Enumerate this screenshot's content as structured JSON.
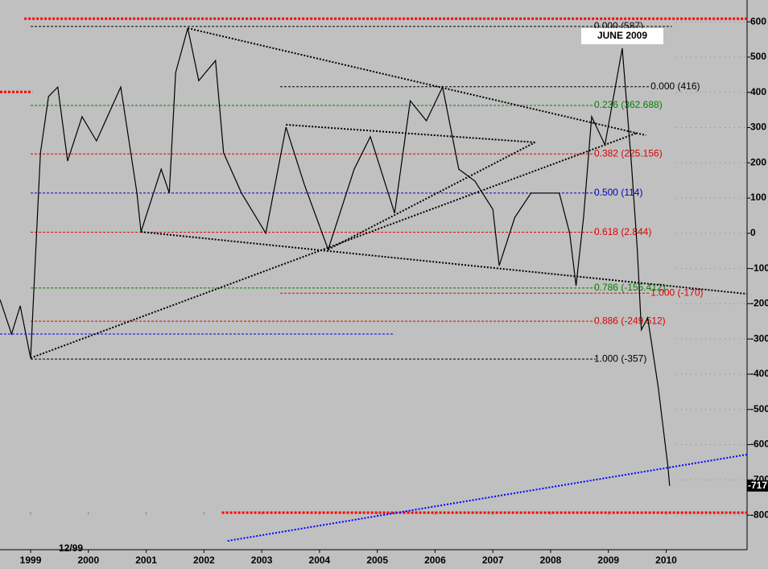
{
  "chart_data": {
    "type": "line",
    "xlim": [
      1998.47,
      2011.4
    ],
    "xticks": [
      1999,
      2000,
      2001,
      2002,
      2003,
      2004,
      2005,
      2006,
      2007,
      2008,
      2009,
      2010
    ],
    "ylim": [
      -898,
      662
    ],
    "yticks": [
      600,
      500,
      400,
      300,
      200,
      100,
      0,
      -100,
      -200,
      -300,
      -400,
      -500,
      -600,
      -700,
      -800
    ],
    "grid": true,
    "series": [
      {
        "color": "#000000",
        "x": [
          1998.47,
          1998.67,
          1998.82,
          1999.0,
          1999.17,
          1999.31,
          1999.47,
          1999.64,
          1999.89,
          2000.14,
          2000.56,
          2000.84,
          2000.91,
          2001.26,
          2001.4,
          2001.51,
          2001.72,
          2001.91,
          2002.2,
          2002.34,
          2002.65,
          2003.07,
          2003.42,
          2003.74,
          2004.15,
          2004.6,
          2004.88,
          2005.3,
          2005.57,
          2005.85,
          2006.13,
          2006.41,
          2006.69,
          2007.0,
          2007.11,
          2007.38,
          2007.66,
          2008.15,
          2008.33,
          2008.44,
          2008.57,
          2008.71,
          2008.94,
          2009.24,
          2009.4,
          2009.5,
          2009.57,
          2009.68,
          2009.86,
          2010.03,
          2010.06
        ],
        "values": [
          -188,
          -286,
          -206,
          -354,
          228,
          388,
          415,
          205,
          331,
          262,
          415,
          114,
          4,
          182,
          114,
          456,
          582,
          433,
          490,
          228,
          114,
          0,
          301,
          137,
          -46,
          182,
          274,
          57,
          376,
          319,
          415,
          182,
          148,
          68,
          -92,
          45,
          114,
          114,
          0,
          -149,
          45,
          331,
          251,
          525,
          194,
          -46,
          -274,
          -240,
          -434,
          -662,
          -717
        ]
      }
    ],
    "levels": [
      {
        "label": "0.000 (587)",
        "value": 587,
        "color": "#000000",
        "x": [
          1999.0,
          2010.1
        ]
      },
      {
        "label": "0.000 (416)",
        "value": 416,
        "color": "#000000",
        "x": [
          2003.32,
          2009.73
        ]
      },
      {
        "label": "0.236 (362.688)",
        "value": 362.688,
        "color": "#008000",
        "x": [
          1999.0,
          2008.78
        ]
      },
      {
        "label": "0.382 (225.156)",
        "value": 225.156,
        "color": "#e00000",
        "x": [
          1999.0,
          2008.78
        ]
      },
      {
        "label": "0.500 (114)",
        "value": 114,
        "color": "#0000c0",
        "x": [
          1999.0,
          2008.78
        ]
      },
      {
        "label": "0.618 (2.844)",
        "value": 2.844,
        "color": "#e00000",
        "x": [
          1999.0,
          2008.78
        ]
      },
      {
        "label": "0.786 (-155.412)",
        "value": -155.412,
        "color": "#008000",
        "x": [
          1999.0,
          2008.78
        ]
      },
      {
        "label": "1.000 (-170)",
        "value": -170,
        "color": "#e00000",
        "x": [
          2003.32,
          2009.73
        ]
      },
      {
        "label": "0.886 (-249.512)",
        "value": -249.512,
        "color": "#e00000",
        "x": [
          1999.0,
          2008.78
        ]
      },
      {
        "label": "1.000 (-357)",
        "value": -357,
        "color": "#000000",
        "x": [
          1999.0,
          2008.78
        ]
      }
    ],
    "lines": [
      {
        "value": 609,
        "color": "#ff0000",
        "x": [
          1998.89,
          2011.4
        ]
      },
      {
        "value": 401,
        "color": "#ff0000",
        "x": [
          1998.47,
          1999.03
        ]
      },
      {
        "value": -793,
        "color": "#ff0000",
        "x": [
          2002.31,
          2011.4
        ]
      },
      {
        "value": -286,
        "color": "#0000ff",
        "x": [
          1998.47,
          2005.3
        ]
      }
    ],
    "trendlines": [
      {
        "color": "#000000",
        "x": [
          2001.72,
          2009.65
        ],
        "y": [
          582,
          278
        ]
      },
      {
        "color": "#000000",
        "x": [
          2000.91,
          2011.4
        ],
        "y": [
          4,
          -172
        ]
      },
      {
        "color": "#000000",
        "x": [
          1999.0,
          2009.5
        ],
        "y": [
          -354,
          285
        ]
      },
      {
        "color": "#000000",
        "x": [
          2003.42,
          2007.73
        ],
        "y": [
          308,
          258
        ]
      },
      {
        "color": "#000000",
        "x": [
          2004.15,
          2007.73
        ],
        "y": [
          -46,
          258
        ]
      },
      {
        "color": "#0000ff",
        "x": [
          2002.41,
          2011.4
        ],
        "y": [
          -873,
          -628
        ]
      }
    ],
    "annotations": {
      "event": "JUNE 2009",
      "date": "12/99"
    }
  }
}
